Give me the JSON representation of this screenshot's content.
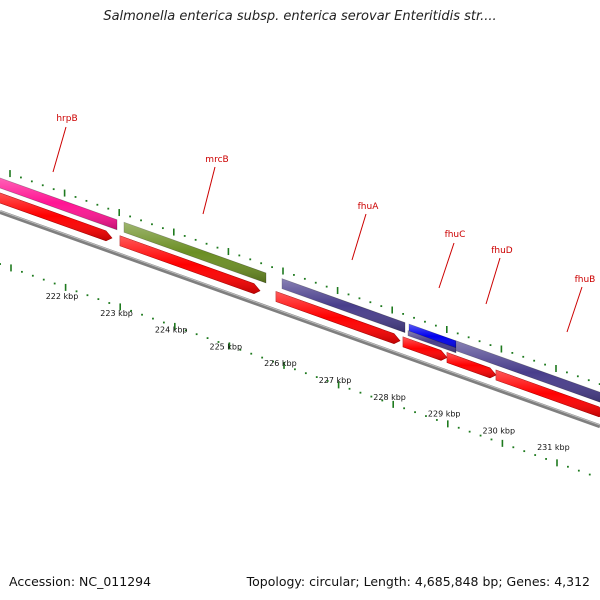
{
  "title": "Salmonella enterica subsp. enterica serovar Enteritidis str....",
  "accession_text": "Accession: NC_011294",
  "summary_text": "Topology: circular; Length: 4,685,848 bp; Genes: 4,312",
  "colors": {
    "backbone": "#7f7f7f",
    "ticks": "#1e7a1e",
    "cds": "#ff0000",
    "label": "#cc0000",
    "hrpB": "#ff1493",
    "mrcB": "#6b8e23",
    "fhu": "#483d8b",
    "fhuC": "#0000ee"
  },
  "kbp_labels": [
    "222 kbp",
    "223 kbp",
    "224 kbp",
    "225 kbp",
    "226 kbp",
    "227 kbp",
    "228 kbp",
    "229 kbp",
    "230 kbp",
    "231 kbp"
  ],
  "genes": [
    {
      "name": "hrpB",
      "color": "hrpB"
    },
    {
      "name": "mrcB",
      "color": "mrcB"
    },
    {
      "name": "fhuA",
      "color": "fhu"
    },
    {
      "name": "fhuC",
      "color": "fhuC"
    },
    {
      "name": "fhuD",
      "color": "fhu"
    },
    {
      "name": "fhuB",
      "color": "fhu"
    }
  ]
}
